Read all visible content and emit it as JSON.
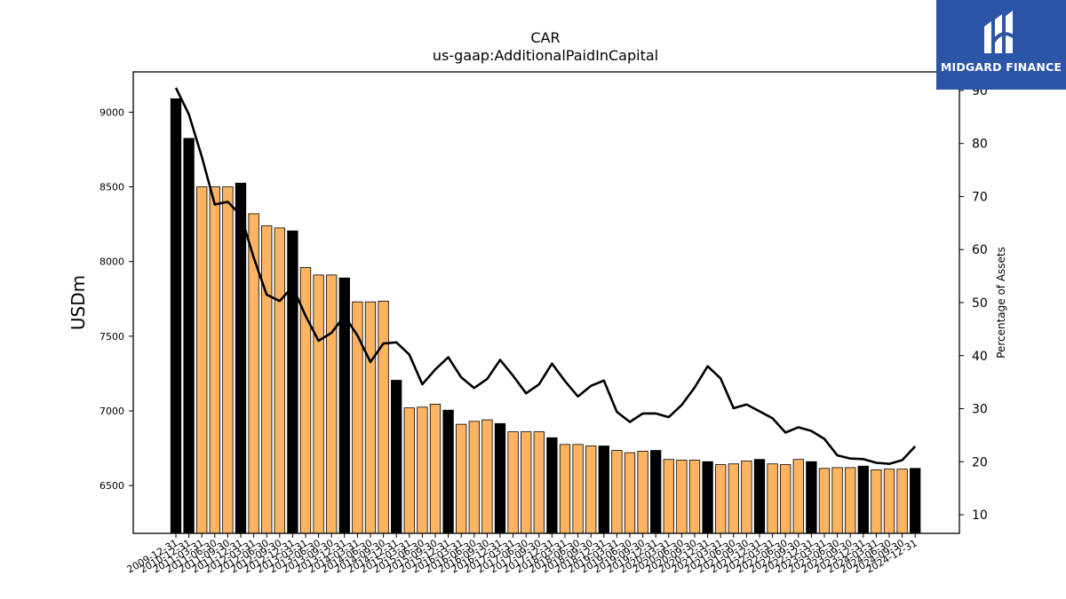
{
  "chart_data": {
    "type": "bar",
    "title": "CAR",
    "subtitle": "us-gaap:AdditionalPaidInCapital",
    "ylabel": "USDm",
    "y2label": "Percentage of Assets",
    "ylim": [
      6180,
      9270
    ],
    "y2lim": [
      6.5,
      93.5
    ],
    "yticks": [
      6500,
      7000,
      7500,
      8000,
      8500,
      9000
    ],
    "y2ticks": [
      10,
      20,
      30,
      40,
      50,
      60,
      70,
      80,
      90
    ],
    "grid": false,
    "colors": {
      "annual": "#000000",
      "quarter": "#fdb462",
      "line": "#000000"
    },
    "categories": [
      "2009-12-31",
      "2010-12-31",
      "2011-03-31",
      "2011-06-30",
      "2011-09-30",
      "2011-12-31",
      "2012-03-31",
      "2012-06-30",
      "2012-09-30",
      "2012-12-31",
      "2013-03-31",
      "2013-06-30",
      "2013-09-30",
      "2013-12-31",
      "2014-03-31",
      "2014-06-30",
      "2014-09-30",
      "2014-12-31",
      "2015-03-31",
      "2015-06-30",
      "2015-09-30",
      "2015-12-31",
      "2016-03-31",
      "2016-06-30",
      "2016-09-30",
      "2016-12-31",
      "2017-03-31",
      "2017-06-30",
      "2017-09-30",
      "2017-12-31",
      "2018-03-31",
      "2018-06-30",
      "2018-09-30",
      "2018-12-31",
      "2019-03-31",
      "2019-06-30",
      "2019-09-30",
      "2019-12-31",
      "2020-03-31",
      "2020-06-30",
      "2020-09-30",
      "2020-12-31",
      "2021-03-31",
      "2021-06-30",
      "2021-09-30",
      "2021-12-31",
      "2022-03-31",
      "2022-06-30",
      "2022-09-30",
      "2022-12-31",
      "2023-03-31",
      "2023-06-30",
      "2023-09-30",
      "2023-12-31",
      "2024-03-31",
      "2024-06-30",
      "2024-09-30",
      "2024-12-31"
    ],
    "annual": [
      true,
      true,
      false,
      false,
      false,
      true,
      false,
      false,
      false,
      true,
      false,
      false,
      false,
      true,
      false,
      false,
      false,
      true,
      false,
      false,
      false,
      true,
      false,
      false,
      false,
      true,
      false,
      false,
      false,
      true,
      false,
      false,
      false,
      true,
      false,
      false,
      false,
      true,
      false,
      false,
      false,
      true,
      false,
      false,
      false,
      true,
      false,
      false,
      false,
      true,
      false,
      false,
      false,
      true,
      false,
      false,
      false,
      true
    ],
    "series": [
      {
        "name": "",
        "type": "bar",
        "values": [
          9090,
          8825,
          8500,
          8500,
          8500,
          8525,
          8320,
          8240,
          8225,
          8205,
          7960,
          7910,
          7910,
          7890,
          7730,
          7730,
          7735,
          7205,
          7020,
          7025,
          7045,
          7005,
          6910,
          6930,
          6940,
          6915,
          6860,
          6860,
          6860,
          6820,
          6775,
          6775,
          6765,
          6765,
          6735,
          6720,
          6730,
          6735,
          6675,
          6670,
          6670,
          6660,
          6640,
          6645,
          6665,
          6675,
          6645,
          6640,
          6675,
          6660,
          6615,
          6620,
          6620,
          6630,
          6605,
          6610,
          6610,
          6615
        ]
      },
      {
        "name": "",
        "type": "line",
        "axis": "right",
        "values": [
          90.5,
          85.5,
          77.5,
          68.5,
          69.0,
          66.5,
          58.5,
          51.5,
          50.3,
          53.0,
          47.5,
          42.8,
          44.3,
          47.5,
          43.8,
          38.8,
          42.3,
          42.5,
          40.2,
          34.6,
          37.4,
          39.7,
          35.9,
          33.9,
          35.6,
          39.2,
          36.2,
          32.9,
          34.6,
          38.5,
          35.2,
          32.3,
          34.3,
          35.3,
          29.4,
          27.5,
          29.1,
          29.1,
          28.4,
          30.7,
          34.0,
          38.0,
          35.7,
          30.1,
          30.8,
          29.5,
          28.2,
          25.5,
          26.5,
          25.8,
          24.3,
          21.2,
          20.6,
          20.5,
          19.8,
          19.6,
          20.3,
          22.9
        ]
      }
    ]
  },
  "logo": {
    "name": "MIDGARD FINANCE"
  }
}
